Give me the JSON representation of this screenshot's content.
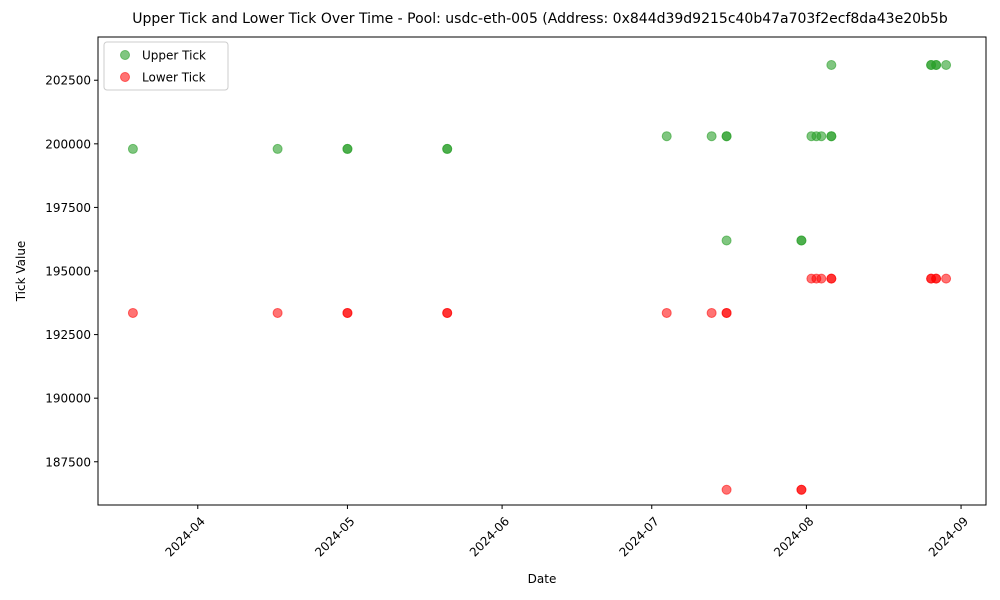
{
  "chart_data": {
    "type": "scatter",
    "title": "Upper Tick and Lower Tick Over Time - Pool: usdc-eth-005 (Address: 0x844d39d9215c40b47a703f2ecf8da43e20b5b",
    "xlabel": "Date",
    "ylabel": "Tick Value",
    "x_range": [
      "2024-03-12",
      "2024-09-06"
    ],
    "ylim": [
      185800,
      204200
    ],
    "x_ticks": [
      "2024-04",
      "2024-05",
      "2024-06",
      "2024-07",
      "2024-08",
      "2024-09"
    ],
    "y_ticks": [
      187500,
      190000,
      192500,
      195000,
      197500,
      200000,
      202500
    ],
    "y_tick_labels": [
      "187500",
      "190000",
      "192500",
      "195000",
      "197500",
      "200000",
      "202500"
    ],
    "grid": false,
    "legend_position": "upper-left",
    "series": [
      {
        "name": "Upper Tick",
        "color": "#2ca02c",
        "alpha": 0.6,
        "points": [
          {
            "x": "2024-03-19",
            "y": 199800
          },
          {
            "x": "2024-04-17",
            "y": 199800
          },
          {
            "x": "2024-05-01",
            "y": 199800
          },
          {
            "x": "2024-05-01",
            "y": 199800
          },
          {
            "x": "2024-05-21",
            "y": 199800
          },
          {
            "x": "2024-05-21",
            "y": 199800
          },
          {
            "x": "2024-07-04",
            "y": 200300
          },
          {
            "x": "2024-07-13",
            "y": 200300
          },
          {
            "x": "2024-07-16",
            "y": 200300
          },
          {
            "x": "2024-07-16",
            "y": 200300
          },
          {
            "x": "2024-07-16",
            "y": 196200
          },
          {
            "x": "2024-07-31",
            "y": 196200
          },
          {
            "x": "2024-07-31",
            "y": 196200
          },
          {
            "x": "2024-08-02",
            "y": 200300
          },
          {
            "x": "2024-08-03",
            "y": 200300
          },
          {
            "x": "2024-08-04",
            "y": 200300
          },
          {
            "x": "2024-08-06",
            "y": 200300
          },
          {
            "x": "2024-08-06",
            "y": 200300
          },
          {
            "x": "2024-08-06",
            "y": 203100
          },
          {
            "x": "2024-08-26",
            "y": 203100
          },
          {
            "x": "2024-08-26",
            "y": 203100
          },
          {
            "x": "2024-08-27",
            "y": 203100
          },
          {
            "x": "2024-08-27",
            "y": 203100
          },
          {
            "x": "2024-08-29",
            "y": 203100
          }
        ]
      },
      {
        "name": "Lower Tick",
        "color": "#ff0000",
        "alpha": 0.55,
        "points": [
          {
            "x": "2024-03-19",
            "y": 193350
          },
          {
            "x": "2024-04-17",
            "y": 193350
          },
          {
            "x": "2024-05-01",
            "y": 193350
          },
          {
            "x": "2024-05-01",
            "y": 193350
          },
          {
            "x": "2024-05-21",
            "y": 193350
          },
          {
            "x": "2024-05-21",
            "y": 193350
          },
          {
            "x": "2024-07-04",
            "y": 193350
          },
          {
            "x": "2024-07-13",
            "y": 193350
          },
          {
            "x": "2024-07-16",
            "y": 193350
          },
          {
            "x": "2024-07-16",
            "y": 193350
          },
          {
            "x": "2024-07-16",
            "y": 186400
          },
          {
            "x": "2024-07-31",
            "y": 186400
          },
          {
            "x": "2024-07-31",
            "y": 186400
          },
          {
            "x": "2024-08-02",
            "y": 194700
          },
          {
            "x": "2024-08-03",
            "y": 194700
          },
          {
            "x": "2024-08-04",
            "y": 194700
          },
          {
            "x": "2024-08-06",
            "y": 194700
          },
          {
            "x": "2024-08-06",
            "y": 194700
          },
          {
            "x": "2024-08-26",
            "y": 194700
          },
          {
            "x": "2024-08-26",
            "y": 194700
          },
          {
            "x": "2024-08-27",
            "y": 194700
          },
          {
            "x": "2024-08-27",
            "y": 194700
          },
          {
            "x": "2024-08-29",
            "y": 194700
          }
        ]
      }
    ]
  }
}
